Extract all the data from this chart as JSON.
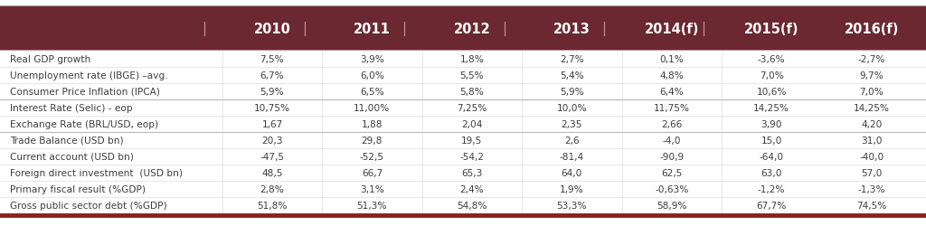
{
  "header_bg_color": "#6B2830",
  "header_text_color": "#FFFFFF",
  "text_color": "#3D3D3D",
  "bottom_line_color": "#8B2020",
  "col_headers": [
    "",
    "2010",
    "2011",
    "2012",
    "2013",
    "2014(f)",
    "2015(f)",
    "2016(f)"
  ],
  "rows": [
    [
      "Real GDP growth",
      "7,5%",
      "3,9%",
      "1,8%",
      "2,7%",
      "0,1%",
      "-3,6%",
      "-2,7%"
    ],
    [
      "Unemployment rate (IBGE) –avg.",
      "6,7%",
      "6,0%",
      "5,5%",
      "5,4%",
      "4,8%",
      "7,0%",
      "9,7%"
    ],
    [
      "Consumer Price Inflation (IPCA)",
      "5,9%",
      "6,5%",
      "5,8%",
      "5,9%",
      "6,4%",
      "10,6%",
      "7,0%"
    ],
    [
      "Interest Rate (Selic) - eop",
      "10,75%",
      "11,00%",
      "7,25%",
      "10,0%",
      "11,75%",
      "14,25%",
      "14,25%"
    ],
    [
      "Exchange Rate (BRL/USD, eop)",
      "1,67",
      "1,88",
      "2,04",
      "2,35",
      "2,66",
      "3,90",
      "4,20"
    ],
    [
      "Trade Balance (USD bn)",
      "20,3",
      "29,8",
      "19,5",
      "2,6",
      "-4,0",
      "15,0",
      "31,0"
    ],
    [
      "Current account (USD bn)",
      "-47,5",
      "-52,5",
      "-54,2",
      "-81,4",
      "-90,9",
      "-64,0",
      "-40,0"
    ],
    [
      "Foreign direct investment  (USD bn)",
      "48,5",
      "66,7",
      "65,3",
      "64,0",
      "62,5",
      "63,0",
      "57,0"
    ],
    [
      "Primary fiscal result (%GDP)",
      "2,8%",
      "3,1%",
      "2,4%",
      "1,9%",
      "-0,63%",
      "-1,2%",
      "-1,3%"
    ],
    [
      "Gross public sector debt (%GDP)",
      "51,8%",
      "51,3%",
      "54,8%",
      "53,3%",
      "58,9%",
      "67,7%",
      "74,5%"
    ]
  ],
  "thick_line_before": [
    3,
    5
  ],
  "figsize": [
    10.24,
    2.51
  ],
  "dpi": 100
}
